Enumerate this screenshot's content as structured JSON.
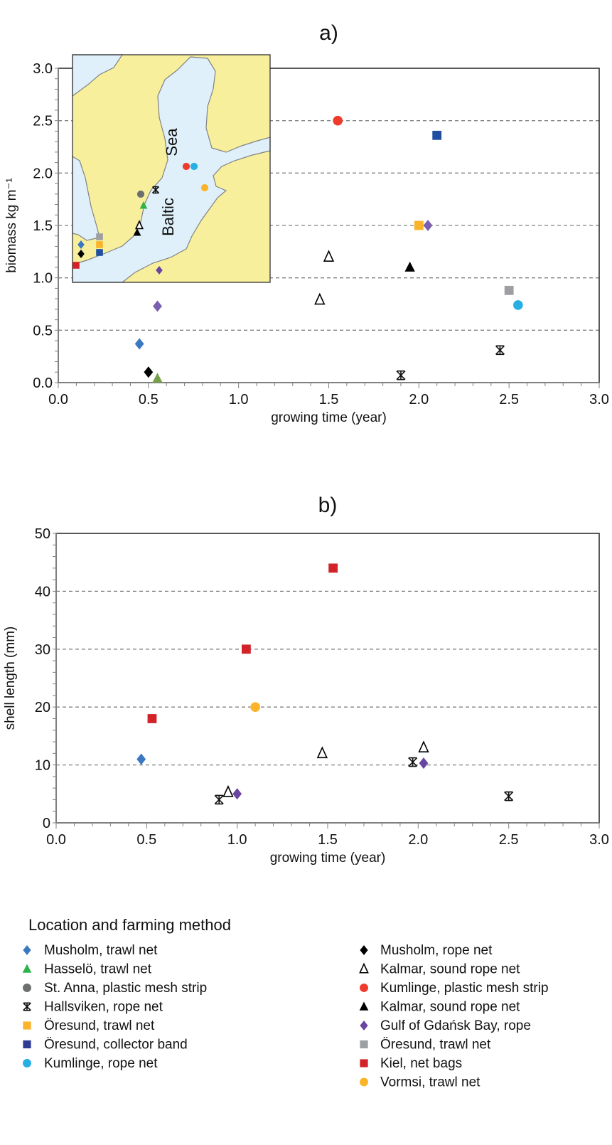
{
  "legend": {
    "title": "Location and farming method",
    "series": [
      {
        "label": "Musholm, trawl net",
        "marker": "diamond",
        "color": "#3a78c2",
        "column": "left"
      },
      {
        "label": "Hasselö, trawl net",
        "marker": "triangle",
        "color": "#2eb34a",
        "column": "left"
      },
      {
        "label": "St. Anna, plastic mesh strip",
        "marker": "circle",
        "color": "#6d6e70",
        "column": "left"
      },
      {
        "label": "Hallsviken, rope net",
        "marker": "asterisk",
        "color": "#111111",
        "column": "left"
      },
      {
        "label": "Öresund, trawl net",
        "marker": "square",
        "color": "#fbb32a",
        "column": "left"
      },
      {
        "label": "Öresund, collector band",
        "marker": "square",
        "color": "#2f3c96",
        "column": "left"
      },
      {
        "label": "Kumlinge, rope net",
        "marker": "circle",
        "color": "#27aee3",
        "column": "left"
      },
      {
        "label": "Musholm, rope net",
        "marker": "diamond",
        "color": "#000000",
        "column": "right"
      },
      {
        "label": "Kalmar, sound rope net",
        "marker": "open-triangle",
        "color": "#000000",
        "column": "right"
      },
      {
        "label": "Kumlinge, plastic mesh strip",
        "marker": "circle",
        "color": "#ee3b2b",
        "column": "right"
      },
      {
        "label": "Kalmar, sound rope net",
        "marker": "triangle",
        "color": "#000000",
        "column": "right"
      },
      {
        "label": "Gulf of Gdańsk Bay, rope",
        "marker": "diamond",
        "color": "#6a45a0",
        "column": "right"
      },
      {
        "label": "Öresund, trawl net",
        "marker": "square",
        "color": "#9d9fa2",
        "column": "right"
      },
      {
        "label": "Kiel, net bags",
        "marker": "square",
        "color": "#d2232a",
        "column": "right"
      },
      {
        "label": "Vormsi, trawl net",
        "marker": "circle",
        "color": "#fbb32a",
        "column": "right"
      }
    ]
  },
  "inset_map": {
    "labels": [
      "Baltic",
      "Sea"
    ],
    "colors": {
      "land": "#f7ef9c",
      "sea": "#dff0fa",
      "coast": "#808285"
    }
  },
  "chart_data": [
    {
      "type": "scatter",
      "title": "a)",
      "xlabel": "growing time (year)",
      "ylabel": "biomass kg m⁻¹",
      "xlim": [
        0,
        3
      ],
      "ylim": [
        0,
        3
      ],
      "xticks": [
        "0.0",
        "0.5",
        "1.0",
        "1.5",
        "2.0",
        "2.5",
        "3.0"
      ],
      "yticks": [
        "0.0",
        "0.5",
        "1.0",
        "1.5",
        "2.0",
        "2.5",
        "3.0"
      ],
      "grid": "horizontal dashed",
      "points": [
        {
          "series": 0,
          "x": 0.45,
          "y": 0.37
        },
        {
          "series": 1,
          "x": 0.55,
          "y": 0.04,
          "color": "#77a04a"
        },
        {
          "series": 3,
          "x": 1.9,
          "y": 0.07
        },
        {
          "series": 3,
          "x": 2.45,
          "y": 0.31
        },
        {
          "series": 4,
          "x": 2.0,
          "y": 1.5
        },
        {
          "series": 5,
          "x": 2.1,
          "y": 2.36,
          "color": "#1f4fa0"
        },
        {
          "series": 6,
          "x": 2.55,
          "y": 0.74
        },
        {
          "series": 7,
          "x": 0.5,
          "y": 0.1
        },
        {
          "series": 8,
          "x": 1.45,
          "y": 0.79
        },
        {
          "series": 8,
          "x": 1.5,
          "y": 1.2
        },
        {
          "series": 9,
          "x": 1.55,
          "y": 2.5
        },
        {
          "series": 10,
          "x": 1.95,
          "y": 1.1
        },
        {
          "series": 11,
          "x": 0.55,
          "y": 0.73,
          "color": "#7a5fb0"
        },
        {
          "series": 11,
          "x": 2.05,
          "y": 1.5,
          "color": "#7a5fb0"
        },
        {
          "series": 12,
          "x": 2.5,
          "y": 0.88
        }
      ]
    },
    {
      "type": "scatter",
      "title": "b)",
      "xlabel": "growing time (year)",
      "ylabel": "shell length (mm)",
      "xlim": [
        0,
        3
      ],
      "ylim": [
        0,
        50
      ],
      "xticks": [
        "0.0",
        "0.5",
        "1.0",
        "1.5",
        "2.0",
        "2.5",
        "3.0"
      ],
      "yticks": [
        "0",
        "10",
        "20",
        "30",
        "40",
        "50"
      ],
      "grid": "horizontal dashed",
      "points": [
        {
          "series": 0,
          "x": 0.47,
          "y": 11
        },
        {
          "series": 3,
          "x": 0.9,
          "y": 4
        },
        {
          "series": 3,
          "x": 1.97,
          "y": 10.5
        },
        {
          "series": 3,
          "x": 2.5,
          "y": 4.6
        },
        {
          "series": 8,
          "x": 0.95,
          "y": 5.3
        },
        {
          "series": 8,
          "x": 1.47,
          "y": 12
        },
        {
          "series": 8,
          "x": 2.03,
          "y": 13
        },
        {
          "series": 11,
          "x": 1.0,
          "y": 5
        },
        {
          "series": 11,
          "x": 2.03,
          "y": 10.3
        },
        {
          "series": 13,
          "x": 0.53,
          "y": 18
        },
        {
          "series": 13,
          "x": 1.05,
          "y": 30
        },
        {
          "series": 13,
          "x": 1.53,
          "y": 44
        },
        {
          "series": 14,
          "x": 1.1,
          "y": 20
        }
      ]
    }
  ]
}
